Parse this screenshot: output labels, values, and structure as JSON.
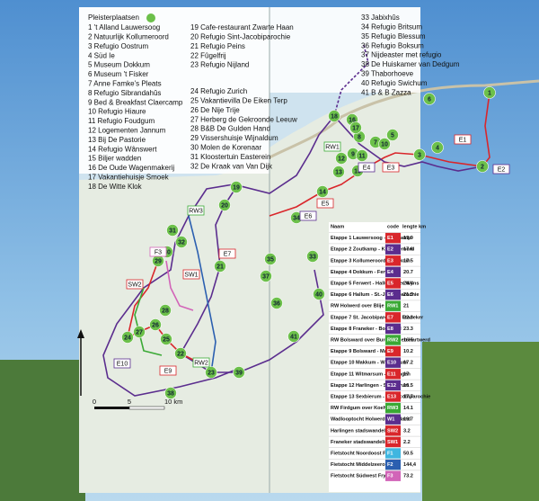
{
  "list": {
    "title": "Pleisterplaatsen",
    "items": [
      "1 't Alland Lauwersoog",
      "2 Natuurlijk Kollumeroord",
      "3 Refugio Oostrum",
      "4 Süd Ie",
      "5 Museum Dokkum",
      "6 Museum 't Fisker",
      "7 Anne Famke's Pleats",
      "8 Refugio Sibrandahûs",
      "9 Bed & Breakfast Claercamp",
      "10 Refugio Hiaure",
      "11 Refugio Foudgum",
      "12 Logementen Jannum",
      "13 Bij De Pastorie",
      "14 Refugio Wânswert",
      "15 Biljer wadden",
      "16 De Oude Wagenmakerij",
      "17 Vakantiehuisje Smoek",
      "18 De Witte Klok",
      "19 Cafe-restaurant Zwarte Haan",
      "20 Refugio Sint-Jacobiparochie",
      "21 Refugio Peins",
      "22 Fûgelfrij",
      "23 Refugio Nijland",
      "24 Refugio Zurich",
      "25 Vakantievilla De Eiken Terp",
      "26 De Nije Trije",
      "27 Herberg de Gekroonde Leeuw",
      "28 B&B De Gulden Hand",
      "29 Vissershuisje Wijnaldum",
      "30 Molen de Korenaar",
      "31 Kloostertuin Easterein",
      "32 De Kraak van Van Dijk",
      "33 Jabixhûs",
      "34 Refugio Britsum",
      "35 Refugio Blessum",
      "36 Refugio Boksum",
      "37 Nijdeaster met refugio",
      "38 De Huiskamer van Dedgum",
      "39 Thaborhoeve",
      "40 Refugio Swichum",
      "41 B & B Zazza"
    ]
  },
  "table": {
    "headers": [
      "Naam",
      "code",
      "lengte km"
    ],
    "rows": [
      {
        "name": "Etappe 1 Lauwersoog - Zoutkamp",
        "code": "E1",
        "length": "13.9",
        "color": "#d9262b"
      },
      {
        "name": "Etappe 2 Zoutkamp - Kollumeroord",
        "code": "E2",
        "length": "17.6",
        "color": "#5b2d8e"
      },
      {
        "name": "Etappe 3 Kollumeroord - Dokkum",
        "code": "E3",
        "length": "17.5",
        "color": "#d9262b"
      },
      {
        "name": "Etappe 4 Dokkum - Ferwert",
        "code": "E4",
        "length": "20.7",
        "color": "#5b2d8e"
      },
      {
        "name": "Etappe 5 Ferwert - Hallum over Wyns",
        "code": "E5",
        "length": "24.4",
        "color": "#d9262b"
      },
      {
        "name": "Etappe 6 Hallum - St.-Jacobiparochie",
        "code": "E6",
        "length": "21.5",
        "color": "#5b2d8e"
      },
      {
        "name": "RW Holwerd over Blije",
        "code": "RW1",
        "length": "21",
        "color": "#3aa935"
      },
      {
        "name": "Etappe 7 St. Jacobiparochie - Franeker",
        "code": "E7",
        "length": "22.3",
        "color": "#d9262b"
      },
      {
        "name": "Etappe 8 Franeker - Bolsward",
        "code": "E8",
        "length": "23.3",
        "color": "#5b2d8e"
      },
      {
        "name": "RW Bolsward over Burgwerd en Hartwerd",
        "code": "RW2",
        "length": "16.5",
        "color": "#3aa935"
      },
      {
        "name": "Etappe 9 Bolsward - Makkum",
        "code": "E9",
        "length": "10.2",
        "color": "#d9262b"
      },
      {
        "name": "Etappe 10 Makkum - Witmarsum",
        "code": "E10",
        "length": "17.2",
        "color": "#5b2d8e"
      },
      {
        "name": "Etappe 11 Witmarsum - Harlingen",
        "code": "E11",
        "length": "17",
        "color": "#d9262b"
      },
      {
        "name": "Etappe 12 Harlingen - Sexbierum",
        "code": "E12",
        "length": "16.5",
        "color": "#5b2d8e"
      },
      {
        "name": "Etappe 13 Sexbierum - St. Jacobiparochie",
        "code": "E13",
        "length": "17.7",
        "color": "#d9262b"
      },
      {
        "name": "RW Firdgum over Koehool",
        "code": "RW3",
        "length": "14.1",
        "color": "#3aa935"
      },
      {
        "name": "Wadlooptocht Holwerd - Ameland",
        "code": "W1",
        "length": "19.7",
        "color": "#5b2d8e"
      },
      {
        "name": "Harlingen stadswandeling",
        "code": "SW2",
        "length": "3.2",
        "color": "#d9262b"
      },
      {
        "name": "Franeker stadswandeling",
        "code": "SW1",
        "length": "2.2",
        "color": "#d9262b"
      },
      {
        "name": "Fietstocht Noordoost Fryslân",
        "code": "F1",
        "length": "50.5",
        "color": "#3fb6e0"
      },
      {
        "name": "Fietstocht Middelzeeroute",
        "code": "F2",
        "length": "144,4",
        "color": "#2b5fb0"
      },
      {
        "name": "Fietstocht Súdwest Fryslân",
        "code": "F3",
        "length": "73.2",
        "color": "#d264b8"
      }
    ]
  },
  "map": {
    "markers": [
      "1",
      "2",
      "3",
      "4",
      "5",
      "6",
      "7",
      "8",
      "9",
      "10",
      "11",
      "12",
      "13",
      "14",
      "15",
      "16",
      "17",
      "18",
      "19",
      "20",
      "21",
      "22",
      "23",
      "24",
      "25",
      "26",
      "27",
      "28",
      "29",
      "30",
      "31",
      "32",
      "33",
      "34",
      "35",
      "36",
      "37",
      "38",
      "39",
      "40",
      "41"
    ],
    "route_tags": [
      "E1",
      "E2",
      "RW1",
      "E3",
      "E4",
      "E5",
      "E6",
      "E7",
      "RW3",
      "F3",
      "SW1",
      "SW2",
      "RW2",
      "E9",
      "E10"
    ],
    "scale": [
      "0",
      "5",
      "10 km"
    ]
  }
}
